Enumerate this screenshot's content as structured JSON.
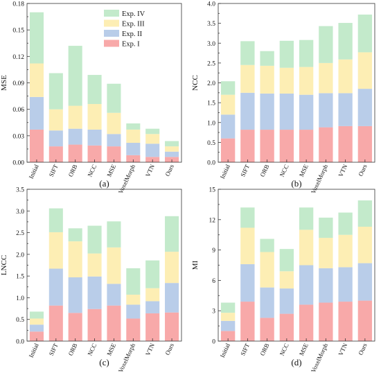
{
  "panel_labels": [
    "(a)",
    "(b)",
    "(c)",
    "(d)"
  ],
  "legend": {
    "entries": [
      "Exp. IV",
      "Exp. III",
      "Exp. II",
      "Exp. I"
    ],
    "placement": "top-right of panel (a)"
  },
  "colors": {
    "Exp. I": "#f8a9a9",
    "Exp. II": "#b9cde9",
    "Exp. III": "#fdeeb4",
    "Exp. IV": "#c3eacb"
  },
  "chart_data": [
    {
      "type": "bar",
      "stacked": true,
      "panel": "(a)",
      "ylabel": "MSE",
      "xlabel": "",
      "ylim": [
        0,
        0.18
      ],
      "yticks": [
        "0.00",
        "0.03",
        "0.06",
        "0.09",
        "0.12",
        "0.15",
        "0.18"
      ],
      "categories": [
        "Initial",
        "SIFT",
        "ORB",
        "NCC",
        "MSE",
        "VoxelMorph",
        "VTN",
        "Ours"
      ],
      "series": [
        {
          "name": "Exp. I",
          "values": [
            0.037,
            0.018,
            0.02,
            0.019,
            0.018,
            0.008,
            0.006,
            0.006
          ]
        },
        {
          "name": "Exp. II",
          "values": [
            0.037,
            0.018,
            0.018,
            0.018,
            0.014,
            0.014,
            0.015,
            0.006
          ]
        },
        {
          "name": "Exp. III",
          "values": [
            0.038,
            0.024,
            0.026,
            0.029,
            0.024,
            0.015,
            0.011,
            0.006
          ]
        },
        {
          "name": "Exp. IV",
          "values": [
            0.058,
            0.041,
            0.068,
            0.033,
            0.033,
            0.007,
            0.006,
            0.006
          ]
        }
      ]
    },
    {
      "type": "bar",
      "stacked": true,
      "panel": "(b)",
      "ylabel": "NCC",
      "xlabel": "",
      "ylim": [
        0,
        4.0
      ],
      "yticks": [
        "0.0",
        "0.5",
        "1.0",
        "1.5",
        "2.0",
        "2.5",
        "3.0",
        "3.5",
        "4.0"
      ],
      "categories": [
        "Initial",
        "SIFT",
        "ORB",
        "NCC",
        "MSE",
        "VoxelMorph",
        "VTN",
        "Ours"
      ],
      "series": [
        {
          "name": "Exp. I",
          "values": [
            0.6,
            0.82,
            0.82,
            0.82,
            0.82,
            0.88,
            0.91,
            0.91
          ]
        },
        {
          "name": "Exp. II",
          "values": [
            0.6,
            0.93,
            0.91,
            0.91,
            0.88,
            0.86,
            0.83,
            0.94
          ]
        },
        {
          "name": "Exp. III",
          "values": [
            0.5,
            0.7,
            0.7,
            0.65,
            0.7,
            0.76,
            0.85,
            0.92
          ]
        },
        {
          "name": "Exp. IV",
          "values": [
            0.34,
            0.6,
            0.37,
            0.68,
            0.68,
            0.93,
            0.92,
            0.95
          ]
        }
      ]
    },
    {
      "type": "bar",
      "stacked": true,
      "panel": "(c)",
      "ylabel": "LNCC",
      "xlabel": "",
      "ylim": [
        0,
        3.5
      ],
      "yticks": [
        "0.0",
        "0.5",
        "1.0",
        "1.5",
        "2.0",
        "2.5",
        "3.0",
        "3.5"
      ],
      "categories": [
        "Initial",
        "SIFT",
        "ORB",
        "NCC",
        "MSE",
        "VoxelMorph",
        "VTN",
        "Ours"
      ],
      "series": [
        {
          "name": "Exp. I",
          "values": [
            0.22,
            0.82,
            0.65,
            0.74,
            0.82,
            0.52,
            0.64,
            0.66
          ]
        },
        {
          "name": "Exp. II",
          "values": [
            0.16,
            0.85,
            0.82,
            0.75,
            0.5,
            0.32,
            0.28,
            0.68
          ]
        },
        {
          "name": "Exp. III",
          "values": [
            0.14,
            0.84,
            0.83,
            0.53,
            0.84,
            0.23,
            0.3,
            0.72
          ]
        },
        {
          "name": "Exp. IV",
          "values": [
            0.16,
            0.55,
            0.3,
            0.64,
            0.6,
            0.61,
            0.64,
            0.82
          ]
        }
      ]
    },
    {
      "type": "bar",
      "stacked": true,
      "panel": "(d)",
      "ylabel": "MI",
      "xlabel": "",
      "ylim": [
        0,
        15
      ],
      "yticks": [
        "0",
        "3",
        "6",
        "9",
        "12",
        "15"
      ],
      "categories": [
        "Initial",
        "SIFT",
        "ORB",
        "NCC",
        "MSE",
        "VoxelMorph",
        "VTN",
        "Ours"
      ],
      "series": [
        {
          "name": "Exp. I",
          "values": [
            1.0,
            3.9,
            2.3,
            2.7,
            3.6,
            3.8,
            3.9,
            4.0
          ]
        },
        {
          "name": "Exp. II",
          "values": [
            1.0,
            3.7,
            3.0,
            2.5,
            3.9,
            3.4,
            3.4,
            3.7
          ]
        },
        {
          "name": "Exp. III",
          "values": [
            0.8,
            3.6,
            3.5,
            1.7,
            3.5,
            3.0,
            3.2,
            3.6
          ]
        },
        {
          "name": "Exp. IV",
          "values": [
            1.0,
            2.0,
            1.3,
            2.2,
            2.2,
            2.0,
            2.2,
            2.6
          ]
        }
      ]
    }
  ]
}
